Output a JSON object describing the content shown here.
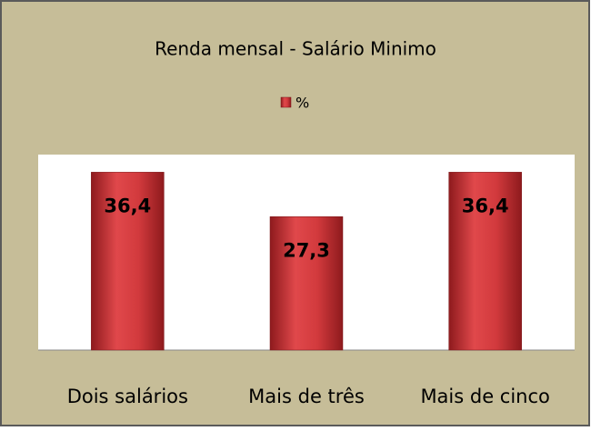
{
  "chart_data": {
    "type": "bar",
    "title": "Renda mensal - Salário Minimo",
    "categories": [
      "Dois salários",
      "Mais de três",
      "Mais de cinco"
    ],
    "series": [
      {
        "name": "%",
        "color": "#c0282c",
        "values": [
          36.4,
          27.3,
          36.4
        ],
        "value_labels": [
          "36,4",
          "27,3",
          "36,4"
        ]
      }
    ],
    "ylim": [
      0,
      40
    ]
  }
}
